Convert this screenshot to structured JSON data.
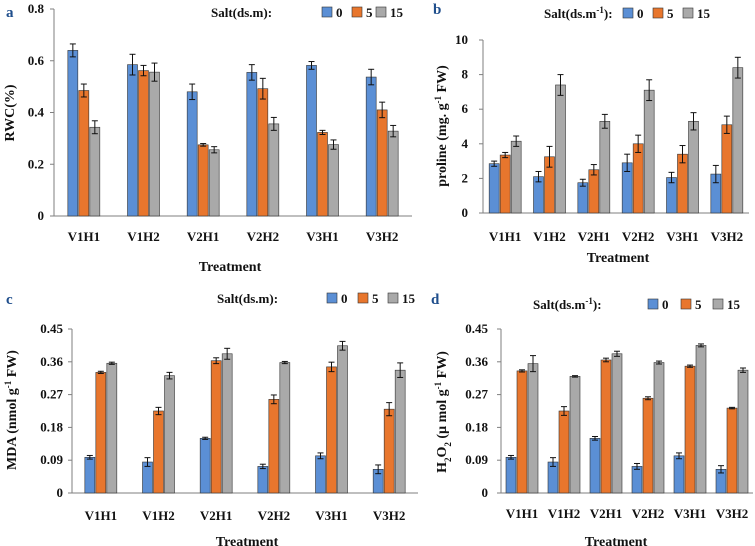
{
  "colors": {
    "s0": "#5b8fd5",
    "s5": "#e8762d",
    "s15": "#a9a9a9",
    "err": "#111111"
  },
  "chart_data": [
    {
      "id": "a",
      "type": "bar",
      "panel_label": "a",
      "legend_title": "Salt(ds.m):",
      "legend_title_parts": [
        "Salt(ds.m):"
      ],
      "categories": [
        "V1H1",
        "V1H2",
        "V2H1",
        "V2H2",
        "V3H1",
        "V3H2"
      ],
      "series": [
        {
          "name": "0",
          "values": [
            0.64,
            0.585,
            0.48,
            0.555,
            0.582,
            0.537
          ],
          "errors": [
            0.025,
            0.04,
            0.03,
            0.03,
            0.015,
            0.03
          ]
        },
        {
          "name": "5",
          "values": [
            0.485,
            0.562,
            0.275,
            0.492,
            0.323,
            0.41
          ],
          "errors": [
            0.025,
            0.02,
            0.005,
            0.04,
            0.008,
            0.03
          ]
        },
        {
          "name": "15",
          "values": [
            0.343,
            0.556,
            0.256,
            0.356,
            0.276,
            0.328
          ],
          "errors": [
            0.025,
            0.035,
            0.012,
            0.025,
            0.018,
            0.022
          ]
        }
      ],
      "ylim": [
        0,
        0.8
      ],
      "yticks": [
        0,
        0.2,
        0.4,
        0.6,
        0.8
      ],
      "ytick_labels": [
        "0",
        "0.2",
        "0.4",
        "0.6",
        "0.8"
      ],
      "ylabel": "RWC(%)",
      "xlabel": "Treatment"
    },
    {
      "id": "b",
      "type": "bar",
      "panel_label": "b",
      "legend_title": "Salt(ds.m-1):",
      "legend_title_parts": [
        "Salt(ds.m",
        "-1",
        "):"
      ],
      "categories": [
        "V1H1",
        "V1H2",
        "V2H1",
        "V2H2",
        "V3H1",
        "V3H2"
      ],
      "series": [
        {
          "name": "0",
          "values": [
            2.85,
            2.1,
            1.75,
            2.9,
            2.05,
            2.25
          ],
          "errors": [
            0.15,
            0.3,
            0.2,
            0.5,
            0.3,
            0.5
          ]
        },
        {
          "name": "5",
          "values": [
            3.35,
            3.25,
            2.5,
            4.0,
            3.4,
            5.1
          ],
          "errors": [
            0.15,
            0.6,
            0.3,
            0.5,
            0.5,
            0.5
          ]
        },
        {
          "name": "15",
          "values": [
            4.15,
            7.4,
            5.3,
            7.1,
            5.3,
            8.4
          ],
          "errors": [
            0.3,
            0.6,
            0.4,
            0.6,
            0.5,
            0.6
          ]
        }
      ],
      "ylim": [
        0,
        10
      ],
      "yticks": [
        0,
        2,
        4,
        6,
        8,
        10
      ],
      "ytick_labels": [
        "0",
        "2",
        "4",
        "6",
        "8",
        "10"
      ],
      "ylabel": "proline (mg. g-1 FW)",
      "ylabel_parts": [
        "proline (mg. g",
        "-1",
        " FW)"
      ],
      "xlabel": "Treatment"
    },
    {
      "id": "c",
      "type": "bar",
      "panel_label": "c",
      "legend_title": "Salt(ds.m):",
      "legend_title_parts": [
        "Salt(ds.m):"
      ],
      "categories": [
        "V1H1",
        "V1H2",
        "V2H1",
        "V2H2",
        "V3H1",
        "V3H2"
      ],
      "series": [
        {
          "name": "0",
          "values": [
            0.098,
            0.085,
            0.15,
            0.073,
            0.102,
            0.065
          ],
          "errors": [
            0.005,
            0.012,
            0.003,
            0.006,
            0.008,
            0.012
          ]
        },
        {
          "name": "5",
          "values": [
            0.331,
            0.225,
            0.363,
            0.257,
            0.346,
            0.23
          ],
          "errors": [
            0.003,
            0.01,
            0.008,
            0.012,
            0.013,
            0.018
          ]
        },
        {
          "name": "15",
          "values": [
            0.356,
            0.322,
            0.382,
            0.358,
            0.404,
            0.337
          ],
          "errors": [
            0.003,
            0.009,
            0.015,
            0.003,
            0.012,
            0.02
          ]
        }
      ],
      "ylim": [
        0,
        0.45
      ],
      "yticks": [
        0,
        0.09,
        0.18,
        0.27,
        0.36,
        0.45
      ],
      "ytick_labels": [
        "0",
        "0.09",
        "0.18",
        "0.27",
        "0.36",
        "0.45"
      ],
      "ylabel": "MDA (nmol g-1 FW)",
      "ylabel_parts": [
        "MDA (nmol g",
        "-1",
        " FW)"
      ],
      "xlabel": "Treatment"
    },
    {
      "id": "d",
      "type": "bar",
      "panel_label": "d",
      "legend_title": "Salt(ds.m-1):",
      "legend_title_parts": [
        "Salt(ds.m",
        "-1",
        "):"
      ],
      "categories": [
        "V1H1",
        "V1H2",
        "V2H1",
        "V2H2",
        "V3H1",
        "V3H2"
      ],
      "series": [
        {
          "name": "0",
          "values": [
            0.098,
            0.085,
            0.15,
            0.073,
            0.102,
            0.065
          ],
          "errors": [
            0.005,
            0.012,
            0.005,
            0.008,
            0.008,
            0.01
          ]
        },
        {
          "name": "5",
          "values": [
            0.335,
            0.225,
            0.365,
            0.26,
            0.348,
            0.233
          ],
          "errors": [
            0.003,
            0.012,
            0.005,
            0.004,
            0.003,
            0.002
          ]
        },
        {
          "name": "15",
          "values": [
            0.355,
            0.32,
            0.382,
            0.358,
            0.405,
            0.337
          ],
          "errors": [
            0.022,
            0.002,
            0.007,
            0.004,
            0.004,
            0.006
          ]
        }
      ],
      "ylim": [
        0,
        0.45
      ],
      "yticks": [
        0,
        0.09,
        0.18,
        0.27,
        0.36,
        0.45
      ],
      "ytick_labels": [
        "0",
        "0.09",
        "0.18",
        "0.27",
        "0.36",
        "0.45"
      ],
      "ylabel": "H2O2 (µ mol g-1 FW)",
      "ylabel_parts": [
        "H",
        "2",
        "O",
        "2",
        " (µ mol g",
        "-1",
        " FW)"
      ],
      "xlabel": "Treatment"
    }
  ]
}
